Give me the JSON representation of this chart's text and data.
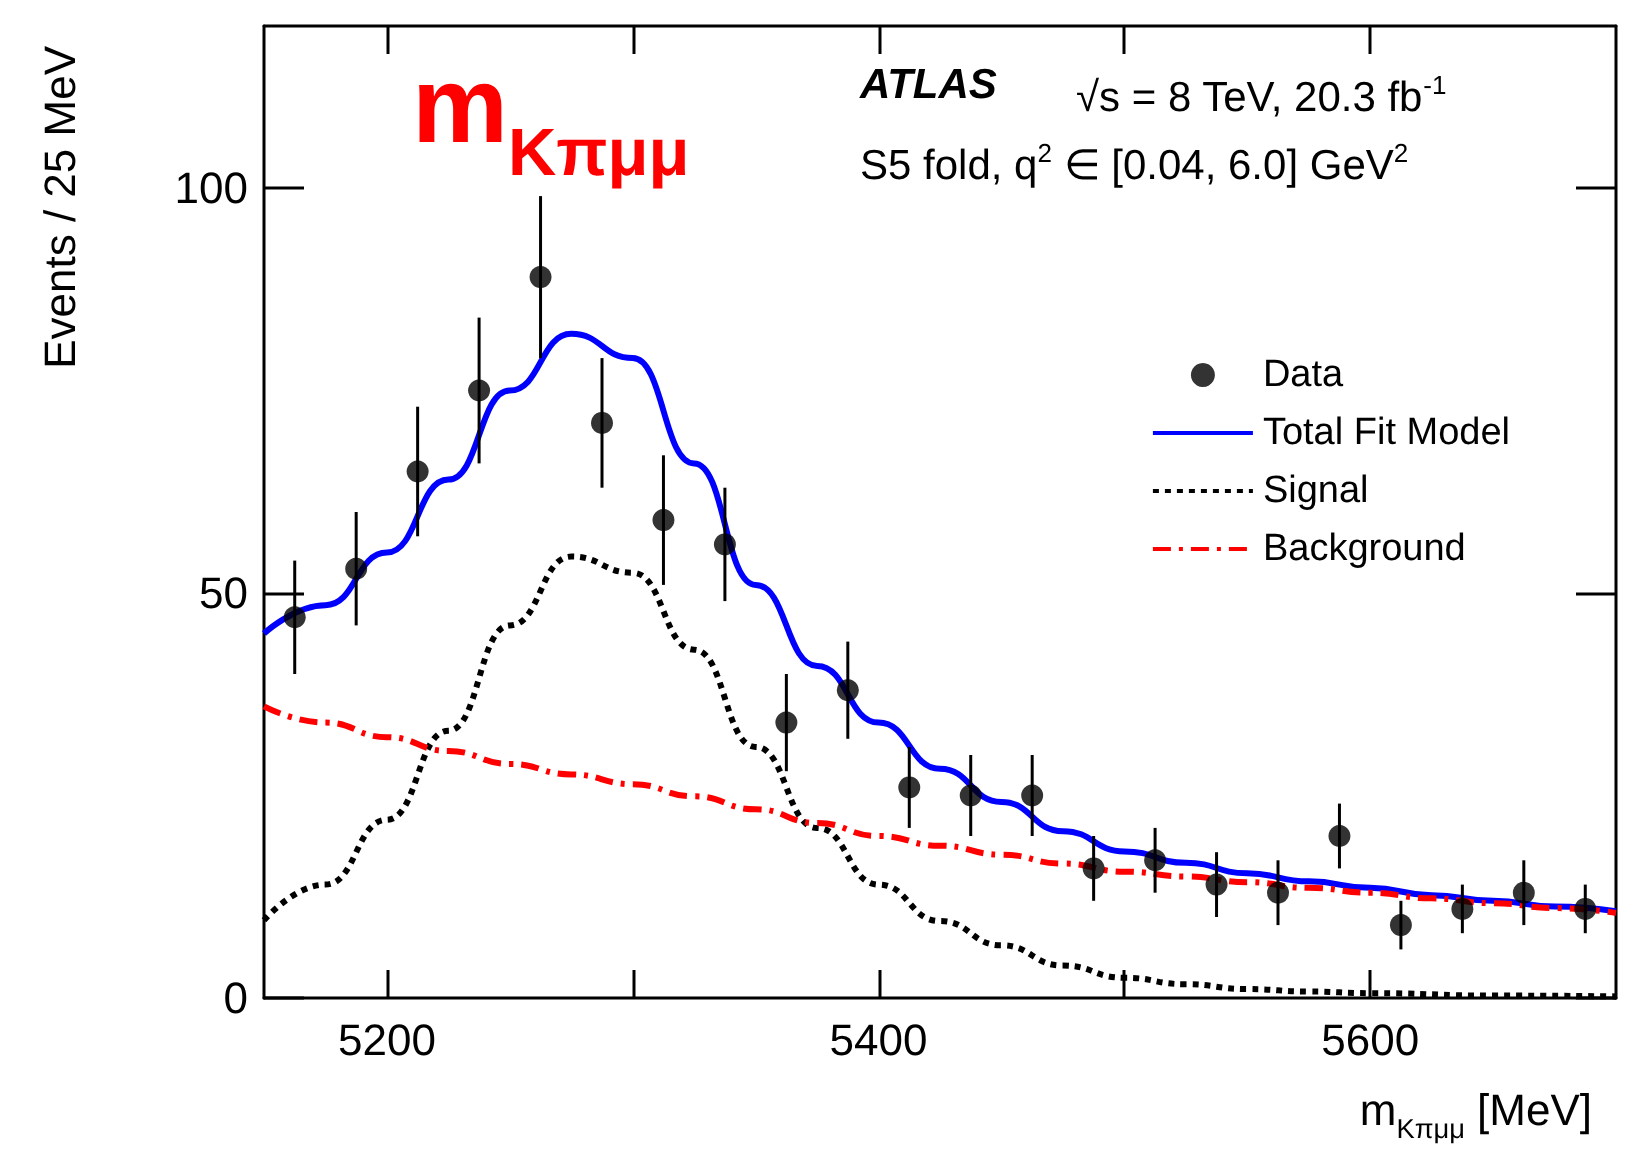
{
  "chart_data": {
    "type": "scatter",
    "title": "m$_{Kπμμ}$",
    "xlabel": "m$_{Kπμμ}$ [MeV]",
    "ylabel": "Events / 25 MeV",
    "annotations": [
      "ATLAS",
      "√s = 8 TeV, 20.3 fb$^{-1}$",
      "S5 fold, q$^{2}$ ∈ [0.04, 6.0] GeV$^{2}$"
    ],
    "xlim": [
      5150,
      5700
    ],
    "xticks": [
      5200,
      {
        "value": 5300,
        "label": null
      },
      5400,
      {
        "value": 5500,
        "label": null
      },
      5600
    ],
    "ylim": [
      0,
      120
    ],
    "yticks": [
      0,
      50,
      100
    ],
    "grid": false,
    "legend": "top right",
    "x": [
      5162.5,
      5187.5,
      5212.5,
      5237.5,
      5262.5,
      5287.5,
      5312.5,
      5337.5,
      5362.5,
      5387.5,
      5412.5,
      5437.5,
      5462.5,
      5487.5,
      5512.5,
      5537.5,
      5562.5,
      5587.5,
      5612.5,
      5637.5,
      5662.5,
      5687.5
    ],
    "series": [
      {
        "name": "Data",
        "marker": "circle",
        "color": "#000000",
        "values": [
          47,
          53,
          65,
          75,
          89,
          71,
          59,
          56,
          34,
          38,
          26,
          25,
          25,
          16,
          17,
          14,
          13,
          20,
          9,
          11,
          13,
          11
        ],
        "errors": [
          7,
          7,
          8,
          9,
          10,
          8,
          8,
          7,
          6,
          6,
          5,
          5,
          5,
          4,
          4,
          4,
          4,
          4,
          3,
          3,
          4,
          3
        ]
      },
      {
        "name": "Total Fit Model",
        "type": "line",
        "marker": "none",
        "line_style": "solid",
        "color": "#0000ff",
        "x": [
          5150,
          5175,
          5200,
          5225,
          5250,
          5275,
          5300,
          5325,
          5350,
          5375,
          5400,
          5425,
          5450,
          5475,
          5500,
          5525,
          5550,
          5575,
          5600,
          5625,
          5650,
          5675,
          5700
        ],
        "values": [
          45,
          48.5,
          55,
          64,
          75,
          82,
          79,
          66,
          51,
          41,
          34,
          28.3,
          24.2,
          20.6,
          18.1,
          16.7,
          15.4,
          14.4,
          13.6,
          12.7,
          12,
          11.3,
          10.7
        ]
      },
      {
        "name": "Signal",
        "type": "line",
        "marker": "none",
        "line_style": "dotted",
        "color": "#000000",
        "x": [
          5150,
          5175,
          5200,
          5225,
          5250,
          5275,
          5300,
          5325,
          5350,
          5375,
          5400,
          5425,
          5450,
          5475,
          5500,
          5525,
          5550,
          5575,
          5600,
          5650,
          5700
        ],
        "values": [
          9.6,
          14,
          22,
          33,
          46,
          54.5,
          52.5,
          43,
          31,
          21,
          14,
          9.5,
          6.5,
          4,
          2.5,
          1.7,
          1.1,
          0.8,
          0.6,
          0.3,
          0.2
        ]
      },
      {
        "name": "Background",
        "type": "line",
        "marker": "none",
        "line_style": "dashed",
        "color": "#ff0000",
        "x": [
          5150,
          5175,
          5200,
          5225,
          5250,
          5275,
          5300,
          5325,
          5350,
          5375,
          5400,
          5425,
          5450,
          5475,
          5500,
          5525,
          5550,
          5575,
          5600,
          5625,
          5650,
          5675,
          5700
        ],
        "values": [
          36,
          34,
          32.2,
          30.5,
          28.9,
          27.6,
          26.4,
          24.9,
          23.3,
          21.6,
          20,
          18.8,
          17.7,
          16.6,
          15.6,
          15,
          14.3,
          13.6,
          13,
          12.3,
          11.7,
          11.1,
          10.5
        ]
      }
    ]
  }
}
